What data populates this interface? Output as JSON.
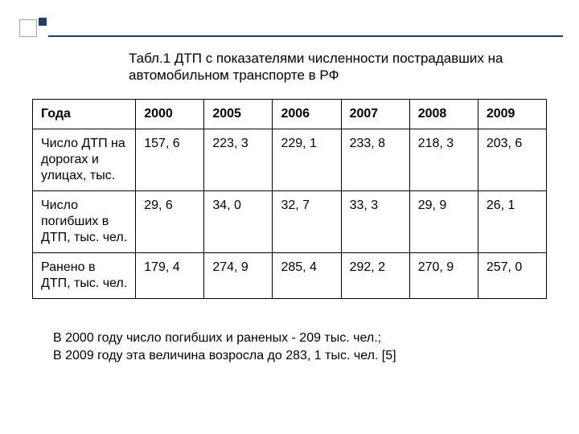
{
  "title": "Табл.1  ДТП с показателями численности пострадавших на автомобильном транспорте в РФ",
  "table": {
    "header_label": "Года",
    "years": [
      "2000",
      "2005",
      "2006",
      "2007",
      "2008",
      "2009"
    ],
    "rows": [
      {
        "label": "Число ДТП на дорогах и улицах, тыс.",
        "values": [
          "157, 6",
          "223, 3",
          "229, 1",
          "233, 8",
          "218, 3",
          "203, 6"
        ]
      },
      {
        "label": "Число погибших в ДТП, тыс. чел.",
        "values": [
          "29, 6",
          "34, 0",
          "32, 7",
          "33, 3",
          "29, 9",
          "26, 1"
        ]
      },
      {
        "label": "Ранено в ДТП, тыс. чел.",
        "values": [
          "179, 4",
          "274, 9",
          "285, 4",
          "292, 2",
          "270, 9",
          "257, 0"
        ]
      }
    ],
    "border_color": "#000000",
    "font_size_pt": 12,
    "header_font_weight": "bold"
  },
  "note_line1": "В 2000 году число погибших и раненых - 209 тыс. чел.;",
  "note_line2": "В 2009 году эта величина возросла до 283, 1 тыс. чел. [5]",
  "styling": {
    "background_color": "#ffffff",
    "accent_color": "#2a3a66",
    "decor_border_color": "#9aa7b3",
    "text_color": "#000000"
  }
}
